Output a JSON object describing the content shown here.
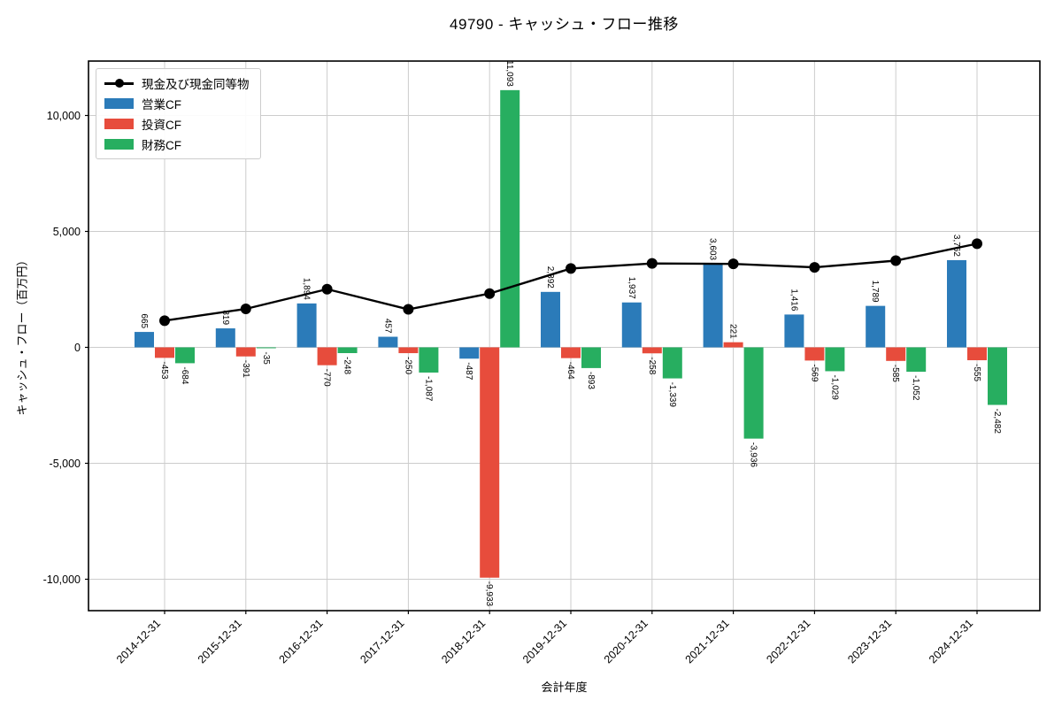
{
  "chart_data": {
    "type": "bar-line-combo",
    "title": "49790 - キャッシュ・フロー推移",
    "xlabel": "会計年度",
    "ylabel": "キャッシュ・フロー（百万円）",
    "categories": [
      "2014-12-31",
      "2015-12-31",
      "2016-12-31",
      "2017-12-31",
      "2018-12-31",
      "2019-12-31",
      "2020-12-31",
      "2021-12-31",
      "2022-12-31",
      "2023-12-31",
      "2024-12-31"
    ],
    "series": [
      {
        "name": "現金及び現金同等物",
        "type": "line",
        "color": "#000000",
        "values": [
          1150,
          1660,
          2510,
          1640,
          2320,
          3400,
          3620,
          3600,
          3450,
          3740,
          4470
        ],
        "values_note": "estimated from pixels; no data labels shown"
      },
      {
        "name": "営業CF",
        "type": "bar",
        "color": "#2b7bb9",
        "values": [
          665,
          819,
          1894,
          457,
          -487,
          2392,
          1937,
          3603,
          1416,
          1789,
          3762
        ]
      },
      {
        "name": "投資CF",
        "type": "bar",
        "color": "#e74c3c",
        "values": [
          -453,
          -391,
          -770,
          -250,
          -9933,
          -464,
          -258,
          221,
          -569,
          -585,
          -555
        ]
      },
      {
        "name": "財務CF",
        "type": "bar",
        "color": "#27ae60",
        "values": [
          -684,
          -35,
          -248,
          -1087,
          11093,
          -893,
          -1339,
          -3936,
          -1029,
          -1052,
          -2482
        ]
      }
    ],
    "ylim": [
      -11355,
      12347
    ],
    "yticks": [
      -10000,
      -5000,
      0,
      5000,
      10000
    ],
    "ytick_labels": [
      "-10,000",
      "-5,000",
      "0",
      "5,000",
      "10,000"
    ],
    "grid": true,
    "grid_color": "#cccccc",
    "legend_position": "upper-left",
    "bar_labels_visible": true,
    "bar_label_rotation_deg": 90,
    "xtick_rotation_deg": 45
  }
}
